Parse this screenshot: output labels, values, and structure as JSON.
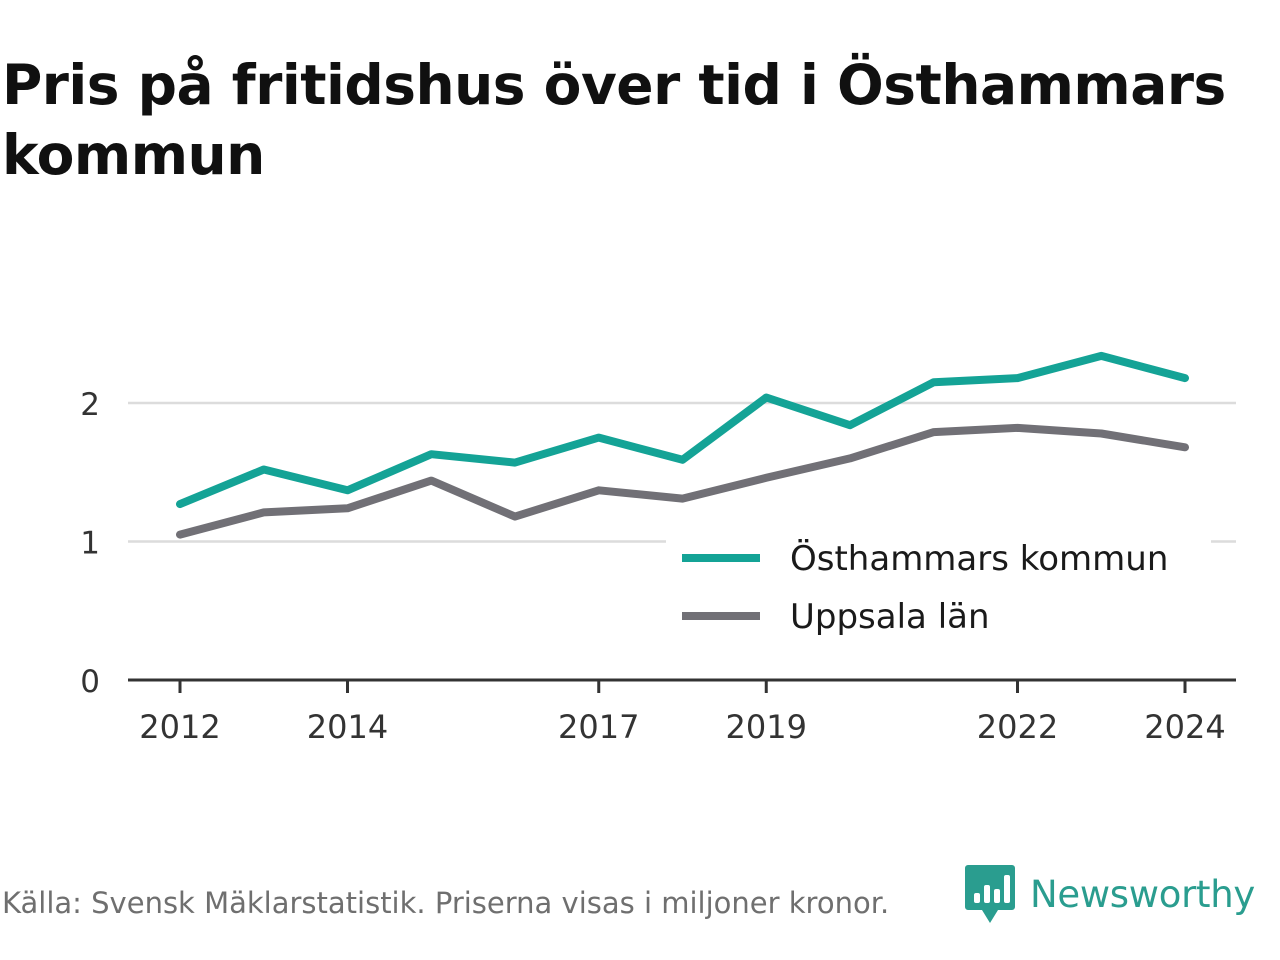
{
  "title": "Pris på fritidshus över tid i Östhammars kommun",
  "footer": {
    "source_text": "Källa: Svensk Mäklarstatistik. Priserna visas i miljoner kronor.",
    "brand_name": "Newsworthy",
    "brand_icon": "bar-chart-speech-bubble-icon",
    "brand_color": "#2a9d8f"
  },
  "chart_data": {
    "type": "line",
    "title": "Pris på fritidshus över tid i Östhammars kommun",
    "xlabel": "",
    "ylabel": "",
    "x": [
      2012,
      2013,
      2014,
      2015,
      2016,
      2017,
      2018,
      2019,
      2020,
      2021,
      2022,
      2023,
      2024
    ],
    "x_tick_labels": [
      "2012",
      "2014",
      "2017",
      "2019",
      "2022",
      "2024"
    ],
    "y_tick_labels": [
      "0",
      "1",
      "2"
    ],
    "ylim": [
      0,
      2.4
    ],
    "grid": "horizontal",
    "legend_position": "bottom-right",
    "series": [
      {
        "name": "Östhammars kommun",
        "color": "#14a396",
        "values": [
          1.27,
          1.52,
          1.37,
          1.63,
          1.57,
          1.75,
          1.59,
          2.04,
          1.84,
          2.15,
          2.18,
          2.34,
          2.18
        ]
      },
      {
        "name": "Uppsala län",
        "color": "#717076",
        "values": [
          1.05,
          1.21,
          1.24,
          1.44,
          1.18,
          1.37,
          1.31,
          1.46,
          1.6,
          1.79,
          1.82,
          1.78,
          1.68
        ]
      }
    ]
  }
}
